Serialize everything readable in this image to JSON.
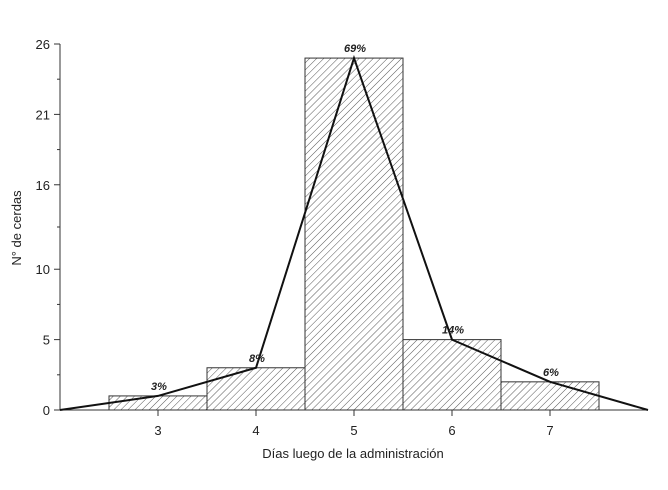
{
  "chart_data": {
    "type": "bar",
    "title": "",
    "xlabel": "Días luego de la administración",
    "ylabel": "N° de cerdas",
    "categories": [
      "3",
      "4",
      "5",
      "6",
      "7"
    ],
    "x": [
      3,
      4,
      5,
      6,
      7
    ],
    "values": [
      1,
      3,
      25,
      5,
      2
    ],
    "data_labels": [
      "3%",
      "8%",
      "69%",
      "14%",
      "6%"
    ],
    "polygon": {
      "x": [
        2,
        3,
        4,
        5,
        6,
        7,
        8
      ],
      "y": [
        0,
        1,
        3,
        25,
        5,
        2,
        0
      ]
    },
    "xlim": [
      2,
      8
    ],
    "ylim": [
      0,
      26
    ],
    "yticks": [
      0,
      5,
      10,
      16,
      21,
      26
    ],
    "yticks_labels": [
      "0",
      "5",
      "10",
      "16",
      "21",
      "26"
    ],
    "xticks": [
      3,
      4,
      5,
      6,
      7
    ],
    "grid": false,
    "legend": "none",
    "colors": {
      "bar_fill": "hatched",
      "bar_stroke": "#333333",
      "line": "#111111",
      "axis": "#333333"
    }
  }
}
